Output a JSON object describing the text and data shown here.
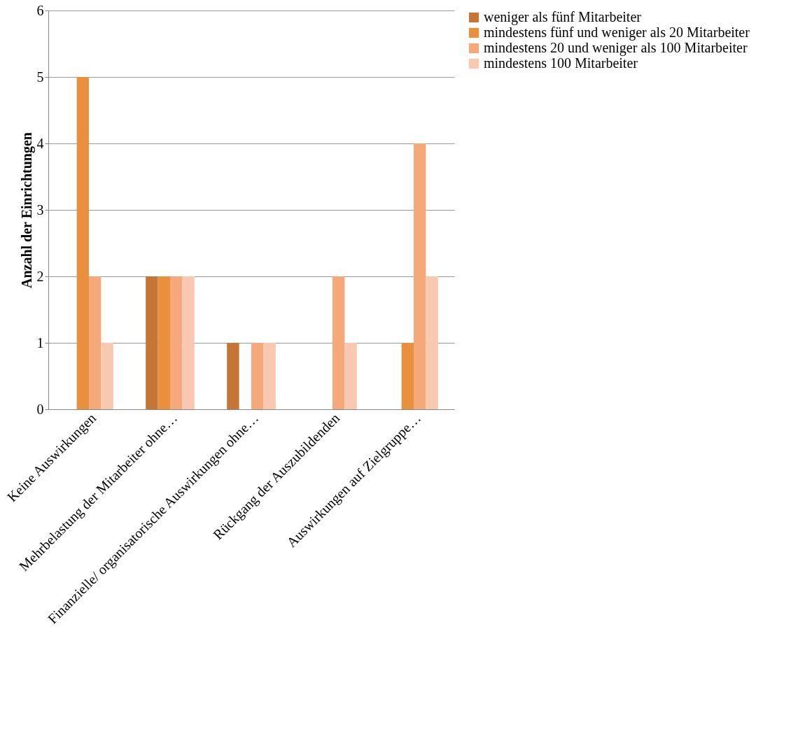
{
  "chart_data": {
    "type": "bar",
    "ylabel": "Anzahl der Einrichtungen",
    "categories": [
      "Keine Auswirkungen",
      "Mehrbelastung der Mitarbeiter ohne…",
      "Finanzielle/ organisatorische Auswirkungen ohne…",
      "Rückgang der Auszubildenden",
      "Auswirkungen auf Zielgruppe…"
    ],
    "series": [
      {
        "name": "weniger als fünf Mitarbeiter",
        "color": "#c57535",
        "values": [
          null,
          2,
          1,
          null,
          null
        ]
      },
      {
        "name": "mindestens fünf und weniger als 20 Mitarbeiter",
        "color": "#e8903e",
        "values": [
          5,
          2,
          null,
          null,
          1
        ]
      },
      {
        "name": "mindestens 20 und weniger als 100 Mitarbeiter",
        "color": "#f5a97a",
        "values": [
          2,
          2,
          1,
          2,
          4
        ]
      },
      {
        "name": "mindestens 100 Mitarbeiter",
        "color": "#f9c8b0",
        "values": [
          1,
          2,
          1,
          1,
          2
        ]
      }
    ],
    "ylim": [
      0,
      6
    ],
    "yticks": [
      0,
      1,
      2,
      3,
      4,
      5,
      6
    ],
    "grid": "y",
    "legend": "right"
  }
}
